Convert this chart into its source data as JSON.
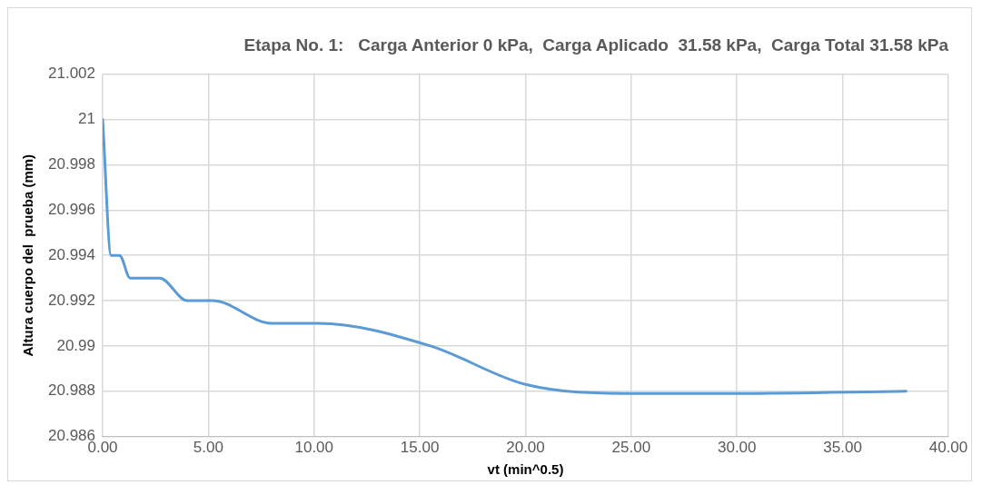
{
  "chart_data": {
    "type": "line",
    "title": "Etapa No. 1:   Carga Anterior 0 kPa,  Carga Aplicado  31.58 kPa,  Carga Total 31.58 kPa",
    "xlabel": "vt (min^0.5)",
    "ylabel": "Altura cuerpo del  prueba (mm)",
    "x": [
      0,
      0.4,
      0.8,
      1.3,
      2.7,
      4,
      5.2,
      8,
      10.2,
      15.5,
      20,
      25,
      30,
      38
    ],
    "series": [
      {
        "color": "#5b9bd5",
        "values": [
          21.0,
          20.994,
          20.994,
          20.993,
          20.993,
          20.992,
          20.992,
          20.991,
          20.991,
          20.99,
          20.9883,
          20.9879,
          20.9879,
          20.988
        ]
      }
    ],
    "xlim": [
      0,
      40
    ],
    "xticks": [
      {
        "value": 0,
        "label": "0.00"
      },
      {
        "value": 5,
        "label": "5.00"
      },
      {
        "value": 10,
        "label": "10.00"
      },
      {
        "value": 15,
        "label": "15.00"
      },
      {
        "value": 20,
        "label": "20.00"
      },
      {
        "value": 25,
        "label": "25.00"
      },
      {
        "value": 30,
        "label": "30.00"
      },
      {
        "value": 35,
        "label": "35.00"
      },
      {
        "value": 40,
        "label": "40.00"
      }
    ],
    "ylim": [
      20.986,
      21.002
    ],
    "yticks": [
      20.986,
      20.988,
      20.99,
      20.992,
      20.994,
      20.996,
      20.998,
      21,
      21.002
    ],
    "grid": true,
    "legend": false,
    "marker": "none",
    "line_style": "solid"
  }
}
